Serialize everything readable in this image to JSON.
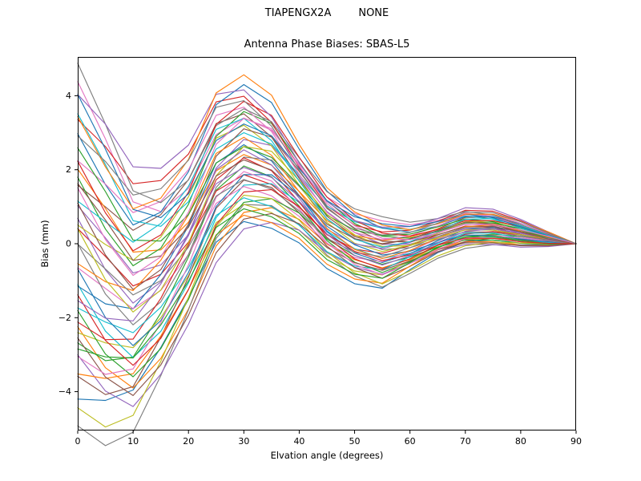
{
  "figure": {
    "suptitle_left": "TIAPENGX2A",
    "suptitle_right": "NONE",
    "title": "Antenna Phase Biases: SBAS-L5",
    "xlabel": "Elvation angle (degrees)",
    "ylabel": "Bias (mm)"
  },
  "chart_data": {
    "type": "line",
    "title": "Antenna Phase Biases: SBAS-L5",
    "xlabel": "Elvation angle (degrees)",
    "ylabel": "Bias (mm)",
    "xlim": [
      0,
      90
    ],
    "ylim": [
      -5.05,
      5.05
    ],
    "x_ticks": [
      0,
      10,
      20,
      30,
      40,
      50,
      60,
      70,
      80,
      90
    ],
    "y_ticks": [
      -4,
      -2,
      0,
      2,
      4
    ],
    "grid": false,
    "legend": "none",
    "x": [
      0,
      5,
      10,
      15,
      20,
      25,
      30,
      35,
      40,
      45,
      50,
      55,
      60,
      65,
      70,
      75,
      80,
      85,
      90
    ],
    "band_top": [
      4.3,
      3.0,
      1.6,
      1.55,
      2.3,
      3.85,
      4.2,
      3.65,
      2.45,
      1.4,
      0.85,
      0.6,
      0.5,
      0.65,
      0.9,
      0.85,
      0.6,
      0.3,
      0.0
    ],
    "band_bottom": [
      -4.2,
      -4.7,
      -4.6,
      -3.4,
      -1.9,
      -0.2,
      0.6,
      0.6,
      0.25,
      -0.45,
      -0.9,
      -1.1,
      -0.7,
      -0.3,
      -0.05,
      0.0,
      -0.05,
      -0.05,
      0.0
    ],
    "series_count": 48,
    "wiggle_amp": 0.12,
    "palette": [
      "#1f77b4",
      "#ff7f0e",
      "#2ca02c",
      "#d62728",
      "#9467bd",
      "#8c564b",
      "#e377c2",
      "#7f7f7f",
      "#bcbd22",
      "#17becf"
    ]
  }
}
